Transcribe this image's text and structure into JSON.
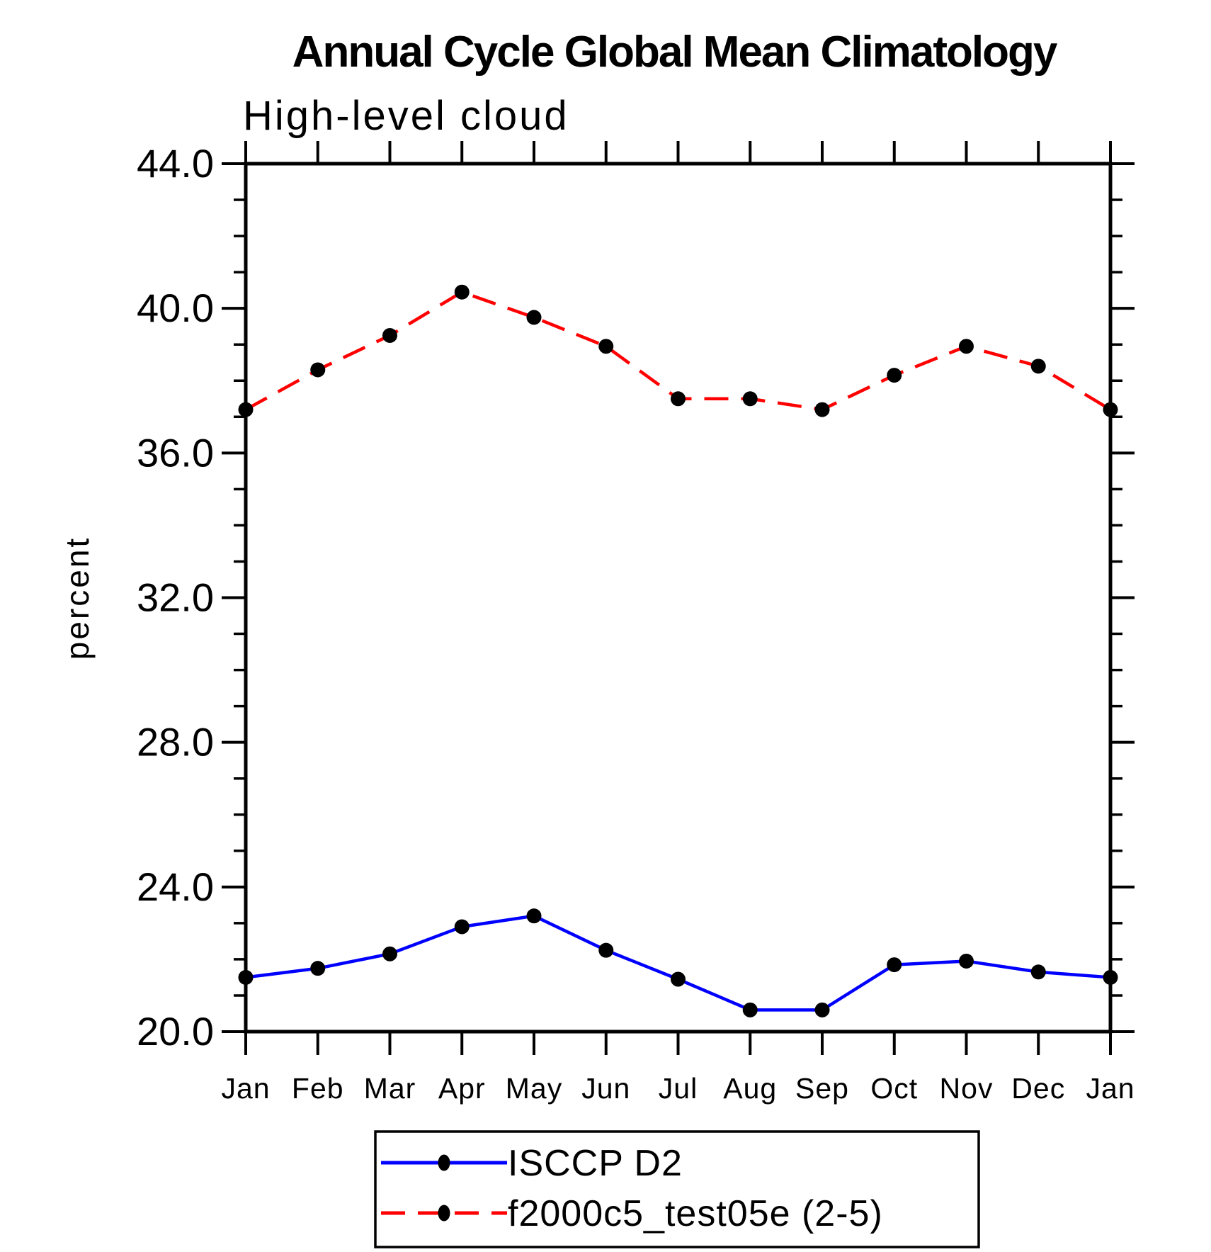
{
  "chart": {
    "title": "Annual Cycle Global Mean Climatology",
    "subtitle": "High-level cloud",
    "ylabel": "percent"
  },
  "chart_data": {
    "type": "line",
    "title": "Annual Cycle Global Mean Climatology",
    "subtitle": "High-level cloud",
    "xlabel": "",
    "ylabel": "percent",
    "x_categories": [
      "Jan",
      "Feb",
      "Mar",
      "Apr",
      "May",
      "Jun",
      "Jul",
      "Aug",
      "Sep",
      "Oct",
      "Nov",
      "Dec",
      "Jan"
    ],
    "series": [
      {
        "name": "ISCCP D2",
        "color": "#0000ff",
        "line_style": "solid",
        "marker": "filled-black-circle",
        "values": [
          21.5,
          21.75,
          22.15,
          22.9,
          23.2,
          22.25,
          21.45,
          20.6,
          20.6,
          21.85,
          21.95,
          21.65,
          21.5
        ]
      },
      {
        "name": "f2000c5_test05e (2-5)",
        "color": "#ff0000",
        "line_style": "dashed",
        "marker": "filled-black-circle",
        "values": [
          37.2,
          38.3,
          39.25,
          40.45,
          39.75,
          38.95,
          37.5,
          37.5,
          37.2,
          38.15,
          38.95,
          38.4,
          37.2
        ]
      }
    ],
    "ylim": [
      20.0,
      44.0
    ],
    "ytick_major": [
      20,
      24,
      28,
      32,
      36,
      40,
      44
    ],
    "ytick_labels": [
      "20.0",
      "24.0",
      "28.0",
      "32.0",
      "36.0",
      "40.0",
      "44.0"
    ],
    "ytick_minor_step": 1,
    "grid": false,
    "legend_position": "bottom-center",
    "frame_color": "#000000",
    "background": "#ffffff"
  }
}
